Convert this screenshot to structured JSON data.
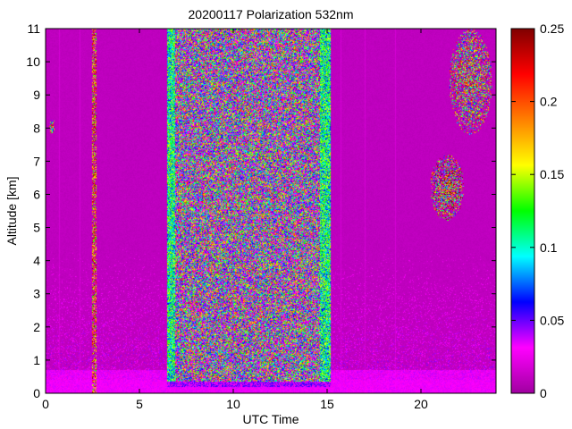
{
  "chart_data": {
    "type": "heatmap",
    "title": "20200117 Polarization 532nm",
    "xlabel": "UTC Time",
    "ylabel": "Altitude [km]",
    "xlim": [
      0,
      24
    ],
    "ylim": [
      0,
      11
    ],
    "x_ticks": [
      0,
      5,
      10,
      15,
      20
    ],
    "y_ticks": [
      0,
      1,
      2,
      3,
      4,
      5,
      6,
      7,
      8,
      9,
      10,
      11
    ],
    "colorbar": {
      "range": [
        0,
        0.25
      ],
      "ticks": [
        0,
        0.05,
        0.1,
        0.15,
        0.2,
        0.25
      ],
      "colormap": "hsv-reversed",
      "stops": [
        "#a000a0",
        "#ff00ff",
        "#0000ff",
        "#00ffff",
        "#00ff00",
        "#ffff00",
        "#ff8000",
        "#ff0000",
        "#800000"
      ]
    },
    "background_value": 0.01,
    "features": [
      {
        "name": "noisy-band",
        "x_start": 6.5,
        "x_end": 15.2,
        "y_start": 0.2,
        "y_end": 11,
        "mean_value": 0.06
      },
      {
        "name": "band-edge-left",
        "x_start": 6.3,
        "x_end": 6.9,
        "y_start": 0.2,
        "y_end": 11,
        "mean_value": 0.11
      },
      {
        "name": "band-edge-right",
        "x_start": 14.6,
        "x_end": 15.2,
        "y_start": 0.2,
        "y_end": 11,
        "mean_value": 0.11
      },
      {
        "name": "cloud-high",
        "x_start": 21.5,
        "x_end": 23.8,
        "y_start": 7.8,
        "y_end": 11,
        "mean_value": 0.13
      },
      {
        "name": "cloud-mid",
        "x_start": 20.5,
        "x_end": 22.3,
        "y_start": 5.2,
        "y_end": 7.2,
        "mean_value": 0.15
      },
      {
        "name": "cloud-early",
        "x_start": 0.2,
        "x_end": 0.5,
        "y_start": 7.8,
        "y_end": 8.3,
        "mean_value": 0.12
      },
      {
        "name": "boundary-layer",
        "x_start": 0,
        "x_end": 24,
        "y_start": 0,
        "y_end": 0.7,
        "mean_value": 0.03
      },
      {
        "name": "vertical-spike",
        "x_start": 2.5,
        "x_end": 2.7,
        "y_start": 0,
        "y_end": 11,
        "mean_value": 0.2
      }
    ]
  }
}
